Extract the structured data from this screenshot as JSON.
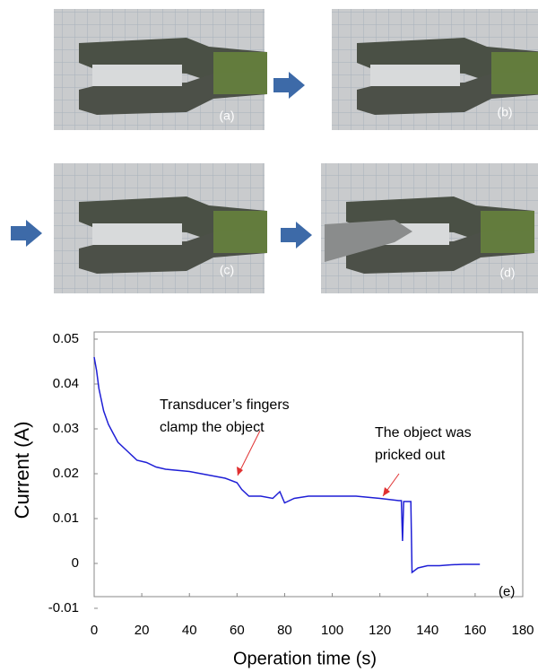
{
  "panels": [
    {
      "label": "(a)"
    },
    {
      "label": "(b)"
    },
    {
      "label": "(c)"
    },
    {
      "label": "(d)"
    }
  ],
  "chart_data": {
    "type": "line",
    "x_label": "Operation time (s)",
    "y_label": "Current (A)",
    "x": [
      0,
      1,
      2,
      4,
      6,
      8,
      10,
      14,
      18,
      22,
      26,
      30,
      40,
      50,
      55,
      60,
      62,
      65,
      70,
      75,
      78,
      80,
      84,
      90,
      100,
      110,
      120,
      128,
      129,
      129.5,
      130,
      133,
      133.5,
      136,
      140,
      145,
      150,
      155,
      162
    ],
    "series": [
      {
        "color": "#1f1fd6",
        "values": [
          0.046,
          0.043,
          0.039,
          0.034,
          0.031,
          0.029,
          0.027,
          0.025,
          0.023,
          0.0225,
          0.0215,
          0.021,
          0.0205,
          0.0195,
          0.019,
          0.018,
          0.0165,
          0.015,
          0.015,
          0.0145,
          0.016,
          0.0135,
          0.0145,
          0.015,
          0.015,
          0.015,
          0.0145,
          0.014,
          0.014,
          0.005,
          0.0138,
          0.0138,
          -0.002,
          -0.001,
          -0.0005,
          -0.0005,
          -0.0003,
          -0.0002,
          -0.0002
        ]
      }
    ],
    "xlim": [
      0,
      180
    ],
    "xticks": [
      0,
      20,
      40,
      60,
      80,
      100,
      120,
      140,
      160,
      180
    ],
    "ylim": [
      -0.01,
      0.05
    ],
    "yticks": [
      {
        "value": -0.01,
        "label": "-0.01"
      },
      0,
      0.01,
      0.02,
      0.03,
      0.04,
      0.05
    ],
    "annotations": [
      {
        "text": [
          "Transducer’s fingers",
          "clamp the object"
        ]
      },
      {
        "text": [
          "The object was",
          "pricked out"
        ]
      },
      {
        "text": [
          "(e)"
        ]
      }
    ]
  }
}
